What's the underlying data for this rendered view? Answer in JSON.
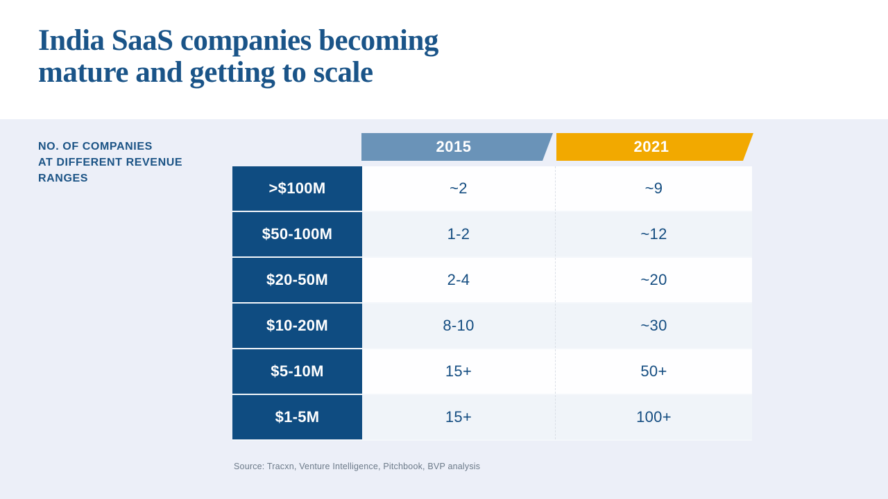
{
  "title": {
    "line1": "India SaaS companies becoming",
    "line2": "mature and getting to scale"
  },
  "side_label": {
    "line1": "NO. OF COMPANIES",
    "line2": "AT DIFFERENT REVENUE",
    "line3": "RANGES"
  },
  "columns": [
    {
      "label": "2015",
      "color": "#6A93B8"
    },
    {
      "label": "2021",
      "color": "#F2A900"
    }
  ],
  "rows": [
    {
      "range": ">$100M",
      "y2015": "~2",
      "y2021": "~9"
    },
    {
      "range": "$50-100M",
      "y2015": "1-2",
      "y2021": "~12"
    },
    {
      "range": "$20-50M",
      "y2015": "2-4",
      "y2021": "~20"
    },
    {
      "range": "$10-20M",
      "y2015": "8-10",
      "y2021": "~30"
    },
    {
      "range": "$5-10M",
      "y2015": "15+",
      "y2021": "50+"
    },
    {
      "range": "$1-5M",
      "y2015": "15+",
      "y2021": "100+"
    }
  ],
  "source": "Source: Tracxn, Venture Intelligence, Pitchbook, BVP analysis",
  "colors": {
    "title_blue": "#1A5488",
    "row_label_blue": "#0F4C81",
    "badge_blue": "#6A93B8",
    "badge_orange": "#F2A900",
    "band_background": "#ECEFF8",
    "value_text": "#134C80",
    "source_text": "#6C7A89"
  },
  "chart_data": {
    "type": "table",
    "title": "India SaaS companies becoming mature and getting to scale",
    "row_header": "NO. OF COMPANIES AT DIFFERENT REVENUE RANGES",
    "columns": [
      "2015",
      "2021"
    ],
    "categories": [
      ">$100M",
      "$50-100M",
      "$20-50M",
      "$10-20M",
      "$5-10M",
      "$1-5M"
    ],
    "series": [
      {
        "name": "2015",
        "values": [
          "~2",
          "1-2",
          "2-4",
          "8-10",
          "15+",
          "15+"
        ]
      },
      {
        "name": "2021",
        "values": [
          "~9",
          "~12",
          "~20",
          "~30",
          "50+",
          "100+"
        ]
      }
    ],
    "source": "Source: Tracxn, Venture Intelligence, Pitchbook, BVP analysis"
  }
}
